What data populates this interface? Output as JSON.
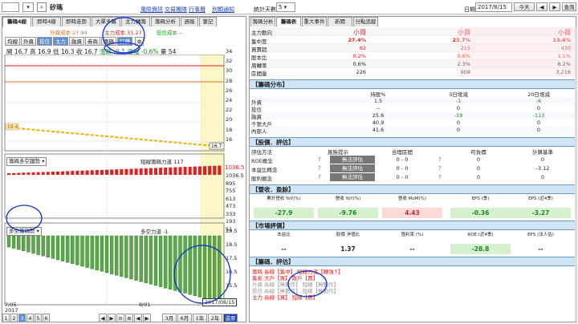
{
  "topbar": {
    "stock_name": "矽瑪",
    "links": [
      "風險資訊",
      "交易團隊",
      "行事曆",
      "別類通知"
    ],
    "period_label": "統計天數：",
    "period_value": "5",
    "date_label": "日期:",
    "date_value": "2017/8/15",
    "today": "今天",
    "lookup": "查詢"
  },
  "left_tabs": [
    "籌碼4線",
    "即時4線",
    "即時走勢",
    "大單多寡",
    "主力轉籌",
    "籌碼分析",
    "週報",
    "筆記"
  ],
  "legend": {
    "a": "外資成本 27.94",
    "b": "主力成本 31.27",
    "c": "投信成本 --"
  },
  "chart_toolbar": [
    "均線",
    "外資",
    "投信",
    "主力",
    "融資",
    "券商",
    "籌碼",
    "訂購"
  ],
  "ohlc": {
    "o_label": "開",
    "o": "16.7",
    "h_label": "高",
    "h": "16.9",
    "l_label": "低",
    "l": "16.3",
    "c_label": "收",
    "c": "16.7",
    "chg_label": "漲跌",
    "chg": "-0.1",
    "pct_label": "漲幅",
    "pct": "-0.6%",
    "vol_label": "量",
    "vol": "54"
  },
  "price_axis": [
    "34",
    "32",
    "30",
    "28",
    "26",
    "24",
    "22",
    "20",
    "18",
    "16"
  ],
  "price_tags": {
    "left": "19.4",
    "right": "16.7"
  },
  "panel2": {
    "label": "籌碼多空趨勢",
    "right": "短線籌碼力道 117",
    "value": "1036.5",
    "axis": [
      "1036.5",
      "895",
      "755",
      "613",
      "473",
      "333",
      "193",
      "51"
    ]
  },
  "panel3": {
    "label": "多空籌碼勢",
    "right": "多空力道 -1",
    "axis": [
      "19.5",
      "18.5",
      "17.5",
      "16.5",
      "15.5"
    ]
  },
  "xaxis": {
    "d1": "7/05",
    "d1b": "2017",
    "d2": "8/01",
    "tooltip": "2017/08/15"
  },
  "bottom_buttons": [
    "1",
    "2",
    "3",
    "4",
    "5",
    "6"
  ],
  "range_buttons": [
    "3月",
    "6月",
    "1年",
    "2年",
    "還原"
  ],
  "right_tabs": [
    "籌碼分析",
    "籌碼表",
    "重大事件",
    "新聞",
    "分點追蹤"
  ],
  "summary": {
    "rows": [
      {
        "label": "主力動向",
        "v": [
          "小買",
          "小買",
          "小買"
        ]
      },
      {
        "label": "集中度",
        "v": [
          "27.4%",
          "23.7%",
          "13.4%"
        ]
      },
      {
        "label": "買賣超",
        "v": [
          "62",
          "215",
          "430"
        ]
      },
      {
        "label": "股本比",
        "v": [
          "0.2%",
          "0.6%",
          "1.1%"
        ]
      },
      {
        "label": "周轉率",
        "v": [
          "0.6%",
          "2.3%",
          "8.2%"
        ]
      },
      {
        "label": "區間量",
        "v": [
          "226",
          "908",
          "3,216"
        ]
      }
    ]
  },
  "dist": {
    "title": "【籌碼分布】",
    "headers": [
      "持股%",
      "3日增減",
      "20日增減"
    ],
    "rows": [
      {
        "label": "外資",
        "v": [
          "1.5",
          "-1",
          "-6"
        ]
      },
      {
        "label": "投信",
        "v": [
          "--",
          "0",
          "0"
        ]
      },
      {
        "label": "融資",
        "v": [
          "25.6",
          "-19",
          "-113"
        ]
      },
      {
        "label": "千張大戶",
        "v": [
          "40.9",
          "0",
          "0"
        ]
      },
      {
        "label": "內部人",
        "v": [
          "41.6",
          "0",
          "0"
        ]
      }
    ]
  },
  "valuation": {
    "title": "【股價．評估】",
    "headers": [
      "評估方法",
      "風險提示",
      "合理區間",
      "可負價",
      "計算基準"
    ],
    "rows": [
      {
        "label": "ROE概念",
        "tag": "無法評估",
        "range": "0 - 0",
        "neg": "0",
        "base": "0"
      },
      {
        "label": "本益比概念",
        "tag": "無法評估",
        "range": "0 - 0",
        "neg": "0",
        "base": "-3.12"
      },
      {
        "label": "股利概念",
        "tag": "無法評估",
        "range": "0 - 0",
        "neg": "0",
        "base": "0"
      }
    ]
  },
  "revenue": {
    "title": "【營收．盈餘】",
    "headers": [
      "累計營收 YoY(%)",
      "營收 YoY(%)",
      "營收 MoM(%)",
      "EPS (季)",
      "EPS (近4季)"
    ],
    "values": [
      "-27.9",
      "-9.76",
      "4.43",
      "-0.36",
      "-3.27"
    ]
  },
  "market": {
    "title": "【市場評價】",
    "headers": [
      "本益比",
      "股價 淨值比",
      "殖利率 (%)",
      "ROE (近4季)",
      "EPS (法人估)"
    ],
    "values": [
      "--",
      "1.37",
      "--",
      "-28.8",
      "--"
    ]
  },
  "eval": {
    "title": "【籌碼．評估】",
    "lines": [
      "籌碼 長線【集中】 短線力道【轉強↑】",
      "集氣 大戶【買】 散戶【賣】",
      "外資 長線【無動作】 短線【無動作】",
      "投信 長線【無動作】 短線【無動作】",
      "主力 長線【買】 短線【賣】"
    ]
  },
  "colors": {
    "up": "#e02020",
    "down": "#1a8a1a",
    "section": "#cfe4f7"
  }
}
